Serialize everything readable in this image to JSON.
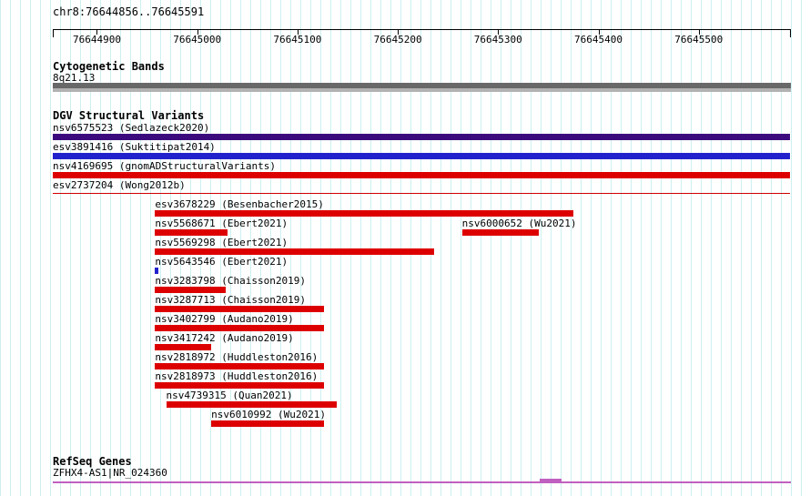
{
  "chart_data": {
    "type": "bar",
    "title": "chr8:76644856..76645591",
    "axis": {
      "min": 76644856,
      "max": 76645591,
      "ticks": [
        76644900,
        76645000,
        76645100,
        76645200,
        76645300,
        76645400,
        76645500
      ]
    },
    "grid": true,
    "tracks": {
      "cytogenetic": {
        "title": "Cytogenetic Bands",
        "band_label": "8q21.13"
      },
      "dgv": {
        "title": "DGV Structural Variants",
        "rows": [
          [
            {
              "id": "nsv6575523 (Sedlazeck2020)",
              "start": 76644856,
              "end": 76645591,
              "color": "#3b0a7d"
            }
          ],
          [
            {
              "id": "esv3891416 (Suktitipat2014)",
              "start": 76644856,
              "end": 76645591,
              "color": "#2222cc"
            }
          ],
          [
            {
              "id": "nsv4169695 (gnomADStructuralVariants)",
              "start": 76644856,
              "end": 76645591,
              "color": "#dd0000"
            }
          ],
          [
            {
              "id": "esv2737204 (Wong2012b)",
              "start": 76644856,
              "end": 76645591,
              "color": "#cc0000",
              "thin": true
            }
          ],
          [
            {
              "id": "esv3678229 (Besenbacher2015)",
              "start": 76644958,
              "end": 76645375,
              "color": "#dd0000"
            }
          ],
          [
            {
              "id": "nsv5568671 (Ebert2021)",
              "start": 76644958,
              "end": 76645030,
              "color": "#dd0000"
            },
            {
              "id": "nsv6000652 (Wu2021)",
              "start": 76645264,
              "end": 76645341,
              "color": "#dd0000"
            }
          ],
          [
            {
              "id": "nsv5569298 (Ebert2021)",
              "start": 76644958,
              "end": 76645236,
              "color": "#dd0000"
            }
          ],
          [
            {
              "id": "nsv5643546 (Ebert2021)",
              "start": 76644958,
              "end": 76644961,
              "color": "#2222cc"
            }
          ],
          [
            {
              "id": "nsv3283798 (Chaisson2019)",
              "start": 76644958,
              "end": 76645028,
              "color": "#dd0000"
            }
          ],
          [
            {
              "id": "nsv3287713 (Chaisson2019)",
              "start": 76644958,
              "end": 76645126,
              "color": "#dd0000"
            }
          ],
          [
            {
              "id": "nsv3402799 (Audano2019)",
              "start": 76644958,
              "end": 76645126,
              "color": "#dd0000"
            }
          ],
          [
            {
              "id": "nsv3417242 (Audano2019)",
              "start": 76644958,
              "end": 76645014,
              "color": "#dd0000"
            }
          ],
          [
            {
              "id": "nsv2818972 (Huddleston2016)",
              "start": 76644958,
              "end": 76645126,
              "color": "#dd0000"
            }
          ],
          [
            {
              "id": "nsv2818973 (Huddleston2016)",
              "start": 76644958,
              "end": 76645126,
              "color": "#dd0000"
            }
          ],
          [
            {
              "id": "nsv4739315 (Quan2021)",
              "start": 76644969,
              "end": 76645139,
              "color": "#dd0000"
            }
          ],
          [
            {
              "id": "nsv6010992 (Wu2021)",
              "start": 76645014,
              "end": 76645126,
              "color": "#dd0000"
            }
          ]
        ]
      },
      "refseq": {
        "title": "RefSeq Genes",
        "gene_label": "ZFHX4-AS1|NR_024360",
        "gene_color": "#c060c0"
      }
    },
    "colors": {
      "red": "#dd0000",
      "blue": "#2222cc",
      "dark_purple": "#3b0a7d",
      "grid_line": "#cdf0f0",
      "cytoband_dark": "#686868",
      "cytoband_light": "#b2b2b2",
      "gene": "#c060c0",
      "ruler": "#000000"
    }
  }
}
